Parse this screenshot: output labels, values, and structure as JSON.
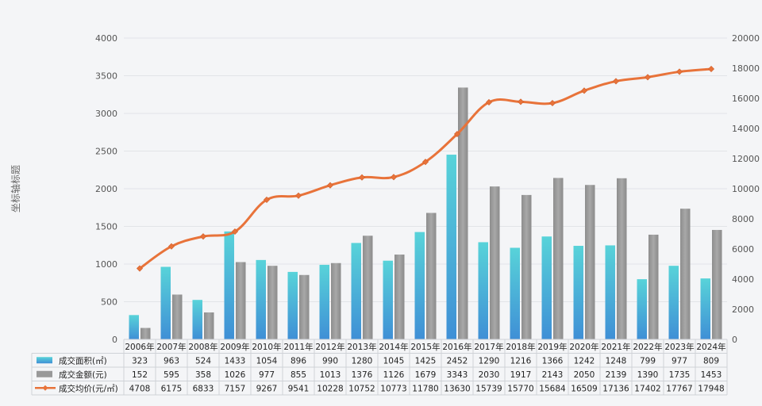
{
  "chart_data": {
    "type": "bar",
    "title": "",
    "ylabel": "坐标轴标题",
    "y2label": "",
    "ylim": [
      0,
      4000
    ],
    "y2lim": [
      0,
      20000
    ],
    "yticks": [
      0,
      500,
      1000,
      1500,
      2000,
      2500,
      3000,
      3500,
      4000
    ],
    "y2ticks": [
      0,
      2000,
      4000,
      6000,
      8000,
      10000,
      12000,
      14000,
      16000,
      18000,
      20000
    ],
    "grid": true,
    "legend_placement": "data-table-left",
    "categories": [
      "2006年",
      "2007年",
      "2008年",
      "2009年",
      "2010年",
      "2011年",
      "2012年",
      "2013年",
      "2014年",
      "2015年",
      "2016年",
      "2017年",
      "2018年",
      "2019年",
      "2020年",
      "2021年",
      "2022年",
      "2023年",
      "2024年"
    ],
    "series": [
      {
        "name": "成交面积(㎡)",
        "type": "bar",
        "axis": "left",
        "color": "#4fc6d6",
        "values": [
          323,
          963,
          524,
          1433,
          1054,
          896,
          990,
          1280,
          1045,
          1425,
          2452,
          1290,
          1216,
          1366,
          1242,
          1248,
          799,
          977,
          809
        ]
      },
      {
        "name": "成交金额(元)",
        "type": "bar",
        "axis": "left",
        "color": "#9a9a9a",
        "values": [
          152,
          595,
          358,
          1026,
          977,
          855,
          1013,
          1376,
          1126,
          1679,
          3343,
          2030,
          1917,
          2143,
          2050,
          2139,
          1390,
          1735,
          1453
        ]
      },
      {
        "name": "成交均价(元/㎡)",
        "type": "line",
        "axis": "right",
        "color": "#e8733a",
        "values": [
          4708,
          6175,
          6833,
          7157,
          9267,
          9541,
          10228,
          10752,
          10773,
          11780,
          13630,
          15739,
          15770,
          15684,
          16509,
          17136,
          17402,
          17767,
          17948
        ]
      }
    ]
  }
}
